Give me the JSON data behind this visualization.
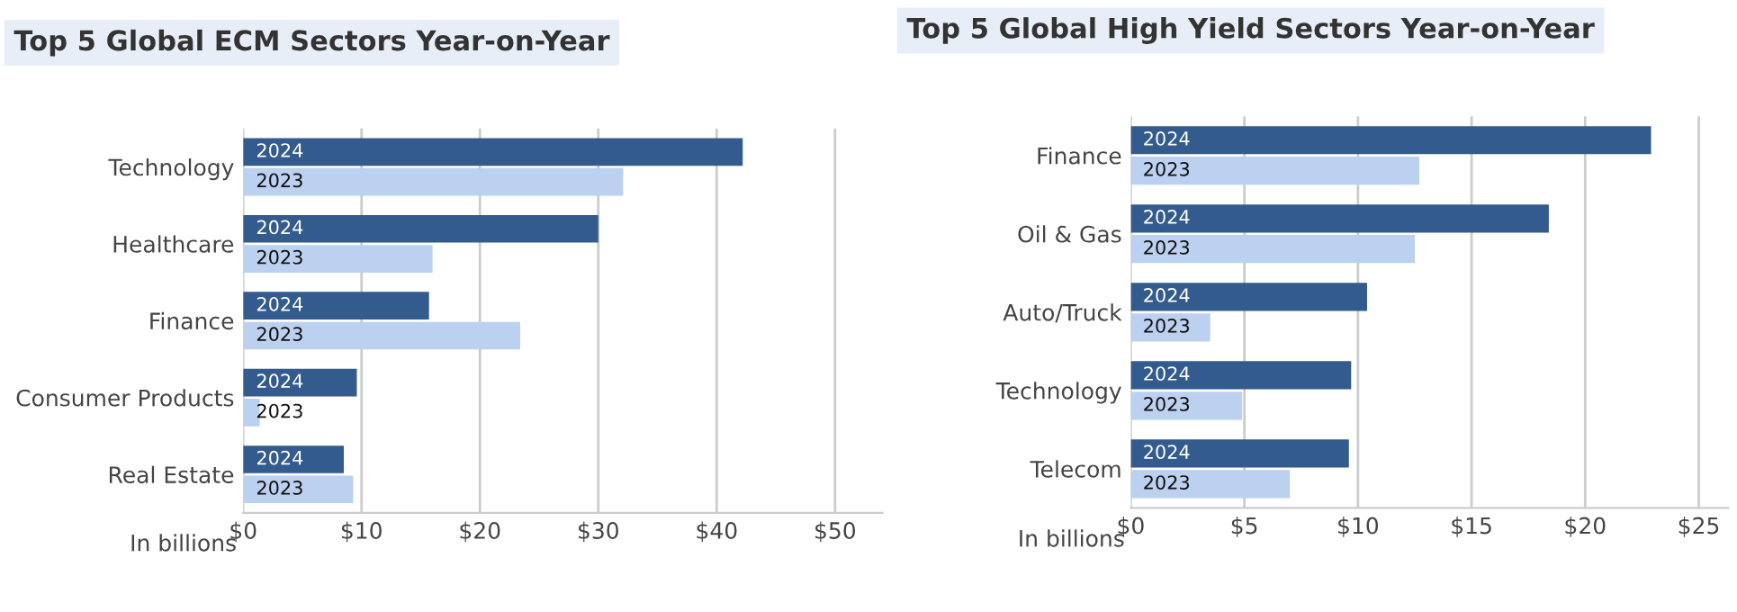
{
  "chart_data": [
    {
      "type": "bar",
      "orientation": "horizontal",
      "title": "Top 5 Global ECM Sectors Year-on-Year",
      "xlabel": "In billions",
      "categories": [
        "Technology",
        "Healthcare",
        "Finance",
        "Consumer Products",
        "Real Estate"
      ],
      "series": [
        {
          "name": "2024",
          "color": "#335b8e",
          "values": [
            42.2,
            30,
            15.7,
            9.6,
            8.5
          ]
        },
        {
          "name": "2023",
          "color": "#bcd0f0",
          "values": [
            32.1,
            16,
            23.4,
            1.4,
            9.3
          ]
        }
      ],
      "xlim": [
        0,
        54
      ],
      "xticks": [
        {
          "value": 0,
          "label": "$0"
        },
        {
          "value": 10,
          "label": "$10"
        },
        {
          "value": 20,
          "label": "$20"
        },
        {
          "value": 30,
          "label": "$30"
        },
        {
          "value": 40,
          "label": "$40"
        },
        {
          "value": 50,
          "label": "$50"
        }
      ],
      "grid": "x",
      "legend": false
    },
    {
      "type": "bar",
      "orientation": "horizontal",
      "title": "Top 5 Global High Yield Sectors Year-on-Year",
      "xlabel": "In billions",
      "categories": [
        "Finance",
        "Oil & Gas",
        "Auto/Truck",
        "Technology",
        "Telecom"
      ],
      "series": [
        {
          "name": "2024",
          "color": "#335b8e",
          "values": [
            22.9,
            18.4,
            10.4,
            9.7,
            9.6
          ]
        },
        {
          "name": "2023",
          "color": "#bcd0f0",
          "values": [
            12.7,
            12.5,
            3.5,
            4.9,
            7.0
          ]
        }
      ],
      "xlim": [
        0,
        26.3
      ],
      "xticks": [
        {
          "value": 0,
          "label": "$0"
        },
        {
          "value": 5,
          "label": "$5"
        },
        {
          "value": 10,
          "label": "$10"
        },
        {
          "value": 15,
          "label": "$15"
        },
        {
          "value": 20,
          "label": "$20"
        },
        {
          "value": 25,
          "label": "$25"
        }
      ],
      "grid": "x",
      "legend": false
    }
  ]
}
